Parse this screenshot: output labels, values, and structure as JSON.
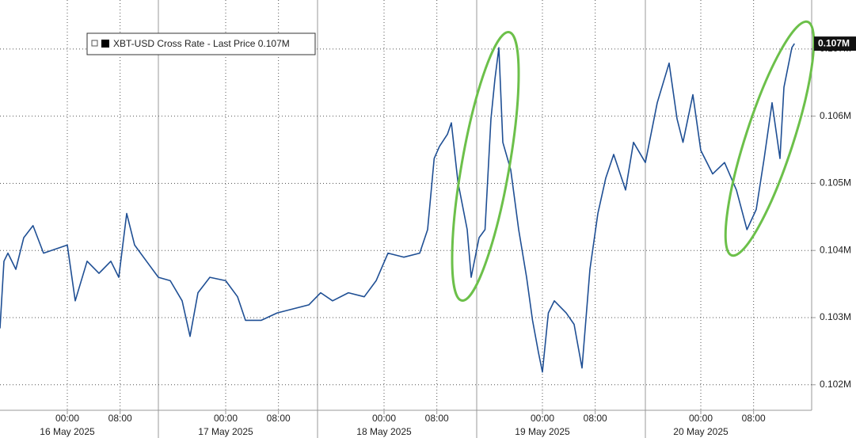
{
  "chart_data": {
    "type": "line",
    "series": [
      {
        "name": "XBT-USD Cross Rate - Last Price 0.107M",
        "color": "#1f4f94",
        "x": [
          -10.2,
          -9.6,
          -9.0,
          -7.8,
          -6.6,
          -5.2,
          -3.6,
          -1.8,
          0,
          1.2,
          3.0,
          4.8,
          6.6,
          7.8,
          9.0,
          10.2,
          12.0,
          13.8,
          15.6,
          17.4,
          18.6,
          19.8,
          21.6,
          24.0,
          25.8,
          27.0,
          29.4,
          31.8,
          34.2,
          36.6,
          38.4,
          40.2,
          42.6,
          45.0,
          46.8,
          48.6,
          51.0,
          53.4,
          54.6,
          55.6,
          56.4,
          57.6,
          58.2,
          59.2,
          60.6,
          61.2,
          62.4,
          63.3,
          64.2,
          64.8,
          65.4,
          66.0,
          67.2,
          68.4,
          69.6,
          70.5,
          71.4,
          72.0,
          72.9,
          73.8,
          75.6,
          76.8,
          78.0,
          79.2,
          80.4,
          81.6,
          82.8,
          84.6,
          85.8,
          87.6,
          89.4,
          91.2,
          92.4,
          93.3,
          94.8,
          96.0,
          97.8,
          99.6,
          101.4,
          103.0,
          104.4,
          105.6,
          106.8,
          108.0,
          108.6,
          109.8,
          110.2
        ],
        "values": [
          102840,
          103840,
          103960,
          103720,
          104190,
          104370,
          103960,
          104020,
          104080,
          103250,
          103840,
          103660,
          103840,
          103600,
          104550,
          104080,
          103840,
          103600,
          103550,
          103250,
          102720,
          103370,
          103600,
          103550,
          103310,
          102960,
          102960,
          103070,
          103130,
          103190,
          103370,
          103250,
          103370,
          103310,
          103550,
          103960,
          103900,
          103960,
          104310,
          105370,
          105550,
          105730,
          105900,
          105020,
          104310,
          103600,
          104190,
          104310,
          105960,
          106550,
          107020,
          105610,
          105200,
          104310,
          103600,
          102960,
          102480,
          102190,
          103070,
          103250,
          103070,
          102900,
          102250,
          103720,
          104550,
          105080,
          105430,
          104900,
          105610,
          105310,
          106200,
          106790,
          105960,
          105610,
          106320,
          105490,
          105140,
          105310,
          104900,
          104310,
          104610,
          105370,
          106200,
          105370,
          106430,
          107020,
          107080
        ]
      }
    ],
    "xlim": [
      -10.2,
      112.8
    ],
    "ylim": [
      101620,
      107730
    ],
    "yticks": [
      {
        "value": 102000,
        "label": "0.102M"
      },
      {
        "value": 103000,
        "label": "0.103M"
      },
      {
        "value": 104000,
        "label": "0.104M"
      },
      {
        "value": 105000,
        "label": "0.105M"
      },
      {
        "value": 106000,
        "label": "0.106M"
      },
      {
        "value": 107000,
        "label": "0.107M"
      }
    ],
    "xticks": [
      {
        "value": 0,
        "label": "00:00"
      },
      {
        "value": 8,
        "label": "08:00"
      },
      {
        "value": 24,
        "label": "00:00"
      },
      {
        "value": 32,
        "label": "08:00"
      },
      {
        "value": 48,
        "label": "00:00"
      },
      {
        "value": 56,
        "label": "08:00"
      },
      {
        "value": 72,
        "label": "00:00"
      },
      {
        "value": 80,
        "label": "08:00"
      },
      {
        "value": 96,
        "label": "00:00"
      },
      {
        "value": 104,
        "label": "08:00"
      }
    ],
    "date_labels": [
      {
        "value": 0,
        "label": "16 May 2025"
      },
      {
        "value": 24,
        "label": "17 May 2025"
      },
      {
        "value": 48,
        "label": "18 May 2025"
      },
      {
        "value": 72,
        "label": "19 May 2025"
      },
      {
        "value": 96,
        "label": "20 May 2025"
      }
    ],
    "last_price_tag": {
      "value": 107080,
      "label": "0.107M"
    },
    "grid": true
  }
}
